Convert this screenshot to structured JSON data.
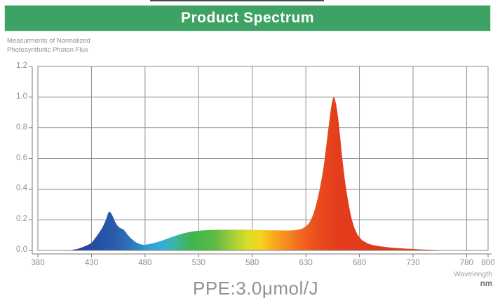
{
  "header": {
    "title": "Product Spectrum",
    "bar_color": "#3EA264"
  },
  "y_axis": {
    "caption_line1": "Measurments of Normalized",
    "caption_line2": "Photosynthetic Photon Flux",
    "tick_labels": [
      "1.2",
      "1.0",
      "0.8",
      "0.6",
      "0.4",
      "0.2",
      "0.0"
    ],
    "tick_values": [
      1.2,
      1.0,
      0.8,
      0.6,
      0.4,
      0.2,
      0.0
    ]
  },
  "x_axis": {
    "tick_labels": [
      "380",
      "430",
      "480",
      "530",
      "580",
      "630",
      "680",
      "730",
      "780",
      "800"
    ],
    "tick_values": [
      380,
      430,
      480,
      530,
      580,
      630,
      680,
      730,
      780,
      800
    ],
    "unit_line1": "Wavelength",
    "unit_line2": "nm"
  },
  "footer": {
    "ppe_label": "PPE:3.0μmol/J"
  },
  "chart_data": {
    "type": "area",
    "title": "Product Spectrum",
    "xlabel": "Wavelength nm",
    "ylabel": "Measurments of Normalized Photosynthetic Photon Flux",
    "xlim": [
      380,
      800
    ],
    "ylim": [
      0,
      1.2
    ],
    "x_ticks": [
      380,
      430,
      480,
      530,
      580,
      630,
      680,
      730,
      780,
      800
    ],
    "y_ticks": [
      0,
      0.2,
      0.4,
      0.6,
      0.8,
      1.0,
      1.2
    ],
    "grid": true,
    "legend": "none",
    "annotations": [
      "PPE:3.0μmol/J"
    ],
    "peaks": [
      {
        "wavelength": 446,
        "value": 0.25
      },
      {
        "wavelength": 656,
        "value": 1.0
      }
    ],
    "series": [
      {
        "name": "Normalized Photosynthetic Photon Flux",
        "points": [
          [
            380,
            0
          ],
          [
            405,
            0
          ],
          [
            410,
            0.002
          ],
          [
            414,
            0.006
          ],
          [
            418,
            0.012
          ],
          [
            422,
            0.022
          ],
          [
            426,
            0.034
          ],
          [
            430,
            0.05
          ],
          [
            434,
            0.085
          ],
          [
            438,
            0.125
          ],
          [
            441,
            0.16
          ],
          [
            444,
            0.21
          ],
          [
            446,
            0.25
          ],
          [
            448,
            0.245
          ],
          [
            450,
            0.22
          ],
          [
            453,
            0.175
          ],
          [
            456,
            0.15
          ],
          [
            460,
            0.135
          ],
          [
            464,
            0.1
          ],
          [
            468,
            0.072
          ],
          [
            472,
            0.052
          ],
          [
            476,
            0.04
          ],
          [
            479,
            0.037
          ],
          [
            483,
            0.04
          ],
          [
            488,
            0.048
          ],
          [
            494,
            0.06
          ],
          [
            500,
            0.075
          ],
          [
            507,
            0.092
          ],
          [
            514,
            0.108
          ],
          [
            520,
            0.118
          ],
          [
            527,
            0.126
          ],
          [
            535,
            0.131
          ],
          [
            545,
            0.134
          ],
          [
            557,
            0.135
          ],
          [
            570,
            0.135
          ],
          [
            582,
            0.134
          ],
          [
            594,
            0.132
          ],
          [
            604,
            0.131
          ],
          [
            612,
            0.13
          ],
          [
            618,
            0.131
          ],
          [
            624,
            0.137
          ],
          [
            629,
            0.152
          ],
          [
            634,
            0.19
          ],
          [
            638,
            0.26
          ],
          [
            642,
            0.37
          ],
          [
            646,
            0.52
          ],
          [
            649,
            0.68
          ],
          [
            652,
            0.85
          ],
          [
            654,
            0.95
          ],
          [
            656,
            1.0
          ],
          [
            658,
            0.96
          ],
          [
            660,
            0.87
          ],
          [
            662,
            0.74
          ],
          [
            664,
            0.6
          ],
          [
            667,
            0.43
          ],
          [
            670,
            0.3
          ],
          [
            673,
            0.2
          ],
          [
            676,
            0.135
          ],
          [
            679,
            0.095
          ],
          [
            682,
            0.07
          ],
          [
            686,
            0.052
          ],
          [
            690,
            0.04
          ],
          [
            695,
            0.032
          ],
          [
            700,
            0.026
          ],
          [
            706,
            0.021
          ],
          [
            712,
            0.017
          ],
          [
            720,
            0.013
          ],
          [
            728,
            0.01
          ],
          [
            736,
            0.007
          ],
          [
            744,
            0.005
          ],
          [
            752,
            0.003
          ],
          [
            762,
            0.002
          ],
          [
            775,
            0.001
          ],
          [
            790,
            0
          ],
          [
            800,
            0
          ]
        ]
      }
    ],
    "gradient_stops": [
      {
        "wavelength": 410,
        "color": "#253d94"
      },
      {
        "wavelength": 440,
        "color": "#2353a7"
      },
      {
        "wavelength": 452,
        "color": "#2a5cab"
      },
      {
        "wavelength": 468,
        "color": "#2d77bc"
      },
      {
        "wavelength": 482,
        "color": "#2f9cd4"
      },
      {
        "wavelength": 495,
        "color": "#36abdc"
      },
      {
        "wavelength": 505,
        "color": "#3ab3b4"
      },
      {
        "wavelength": 515,
        "color": "#3eb573"
      },
      {
        "wavelength": 525,
        "color": "#41b54e"
      },
      {
        "wavelength": 545,
        "color": "#5abb45"
      },
      {
        "wavelength": 560,
        "color": "#9ecb3b"
      },
      {
        "wavelength": 575,
        "color": "#d7dc28"
      },
      {
        "wavelength": 588,
        "color": "#f4d51f"
      },
      {
        "wavelength": 600,
        "color": "#f8a91b"
      },
      {
        "wavelength": 612,
        "color": "#f68c1e"
      },
      {
        "wavelength": 625,
        "color": "#f26722"
      },
      {
        "wavelength": 640,
        "color": "#e94e1e"
      },
      {
        "wavelength": 660,
        "color": "#e43c1c"
      },
      {
        "wavelength": 700,
        "color": "#dd3a19"
      },
      {
        "wavelength": 750,
        "color": "#d83a18"
      }
    ],
    "style": {
      "grid_color": "#8f8f8f",
      "border_color": "#858585",
      "axis_color": "#7a7a7a",
      "label_color": "#8b9096"
    }
  }
}
